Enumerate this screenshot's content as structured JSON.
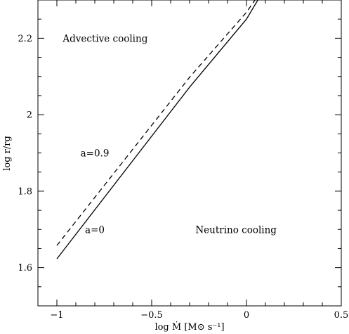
{
  "chart_data": {
    "type": "line",
    "title": "",
    "xlabel": "log Ṁ [M⊙ s⁻¹]",
    "ylabel": "log r/rg",
    "xlim": [
      -1.1,
      0.5
    ],
    "ylim": [
      1.5,
      2.3
    ],
    "x_ticks": [
      -1,
      -0.5,
      0,
      0.5
    ],
    "x_tick_labels": [
      "−1",
      "−0.5",
      "0",
      "0.5"
    ],
    "y_ticks": [
      1.6,
      1.8,
      2.0,
      2.2
    ],
    "y_tick_labels": [
      "1.6",
      "1.8",
      "2",
      "2.2"
    ],
    "x_minor_step": 0.1,
    "y_minor_step": 0.05,
    "grid": false,
    "series": [
      {
        "name": "a=0",
        "style": "solid",
        "color": "#000000",
        "x": [
          -1.0,
          -0.3,
          0.0,
          0.06
        ],
        "y": [
          1.623,
          2.072,
          2.25,
          2.3
        ]
      },
      {
        "name": "a=0.9",
        "style": "dashed",
        "color": "#000000",
        "x": [
          -1.0,
          -0.3,
          0.0,
          0.045
        ],
        "y": [
          1.658,
          2.098,
          2.268,
          2.3
        ]
      }
    ],
    "annotations": [
      {
        "text": "Advective cooling",
        "x": -0.745,
        "y": 2.2
      },
      {
        "text": "a=0.9",
        "x": -0.8,
        "y": 1.9
      },
      {
        "text": "a=0",
        "x": -0.8,
        "y": 1.7
      },
      {
        "text": "Neutrino cooling",
        "x": -0.055,
        "y": 1.7
      }
    ]
  }
}
